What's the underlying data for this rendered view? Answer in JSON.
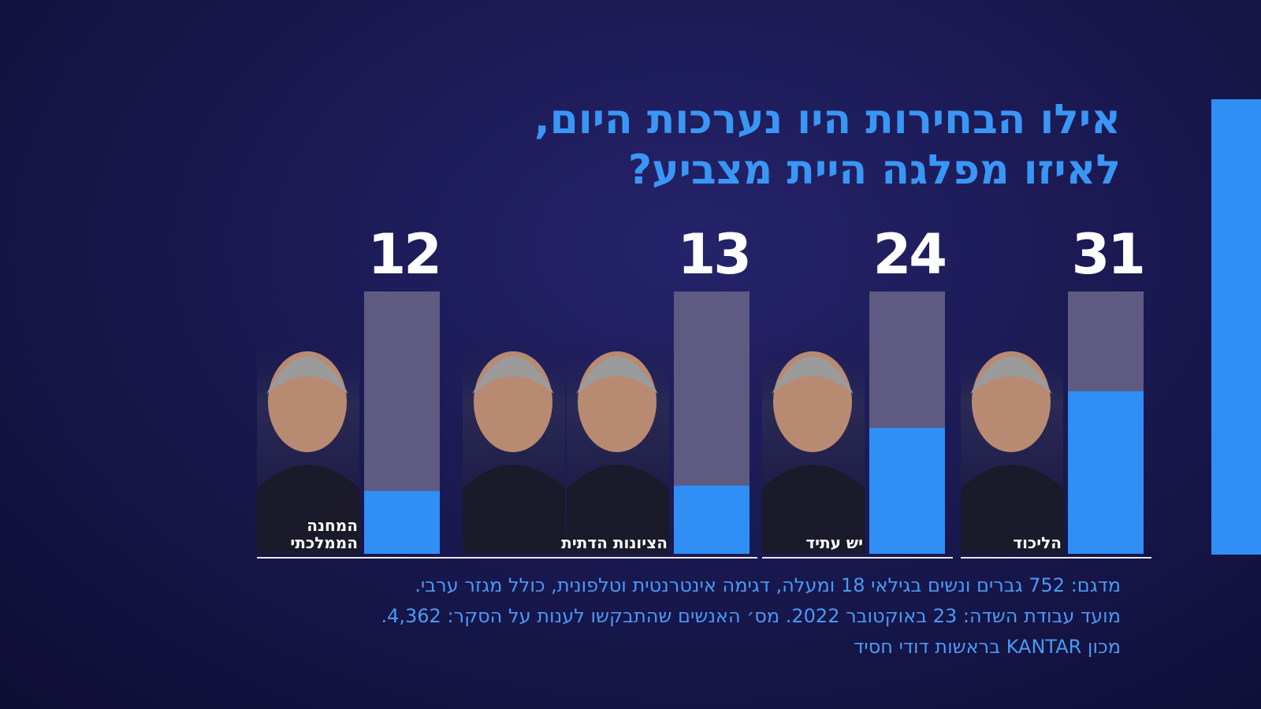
{
  "chart_data": {
    "type": "bar",
    "title": [
      "אילו הבחירות היו נערכות היום,",
      "לאיזו מפלגה היית מצביע?"
    ],
    "categories": [
      "הליכוד",
      "יש עתיד",
      "הציונות הדתית",
      "המחנה הממלכתי"
    ],
    "values": [
      31,
      24,
      13,
      12
    ],
    "color": "#2f8ff5",
    "ylim": [
      0,
      50
    ],
    "notes": [
      "מדגם: 752 גברים ונשים בגילאי 18 ומעלה, דגימה אינטרנטית וטלפונית, כולל מגזר ערבי.",
      "מועד עבודת השדה: 23 באוקטובר 2022. מס׳ האנשים שהתבקשו לענות על הסקר: 4,362.",
      "מכון KANTAR בראשות דודי חסיד"
    ]
  }
}
